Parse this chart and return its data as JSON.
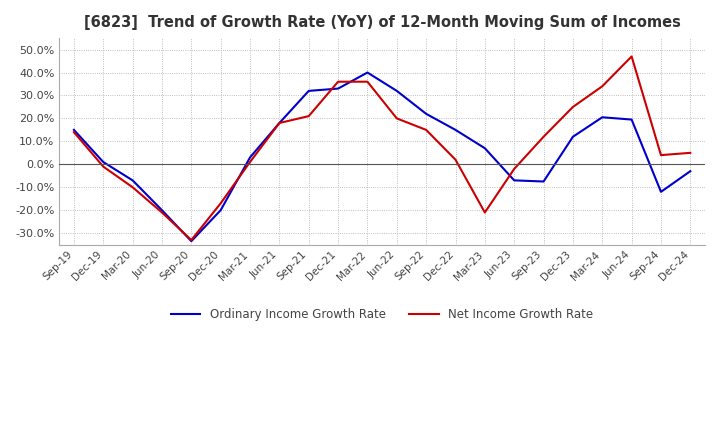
{
  "title": "[6823]  Trend of Growth Rate (YoY) of 12-Month Moving Sum of Incomes",
  "x_labels": [
    "Sep-19",
    "Dec-19",
    "Mar-20",
    "Jun-20",
    "Sep-20",
    "Dec-20",
    "Mar-21",
    "Jun-21",
    "Sep-21",
    "Dec-21",
    "Mar-22",
    "Jun-22",
    "Sep-22",
    "Dec-22",
    "Mar-23",
    "Jun-23",
    "Sep-23",
    "Dec-23",
    "Mar-24",
    "Jun-24",
    "Sep-24",
    "Dec-24"
  ],
  "ordinary_income": [
    15.0,
    1.0,
    -7.0,
    -20.0,
    -33.5,
    -20.0,
    3.0,
    18.0,
    32.0,
    33.0,
    40.0,
    32.0,
    22.0,
    15.0,
    7.0,
    -7.0,
    -7.5,
    12.0,
    20.5,
    19.5,
    -12.0,
    -3.0
  ],
  "net_income": [
    14.0,
    -1.0,
    -10.0,
    -21.0,
    -33.0,
    -17.0,
    1.0,
    18.0,
    21.0,
    36.0,
    36.0,
    20.0,
    15.0,
    2.0,
    -21.0,
    -2.0,
    12.0,
    25.0,
    34.0,
    47.0,
    4.0,
    5.0
  ],
  "ordinary_color": "#0000cc",
  "net_color": "#cc0000",
  "ylim": [
    -35,
    55
  ],
  "yticks": [
    -30,
    -20,
    -10,
    0,
    10,
    20,
    30,
    40,
    50
  ],
  "legend_labels": [
    "Ordinary Income Growth Rate",
    "Net Income Growth Rate"
  ],
  "background_color": "#ffffff",
  "grid_color": "#aaaaaa",
  "title_color": "#333333"
}
